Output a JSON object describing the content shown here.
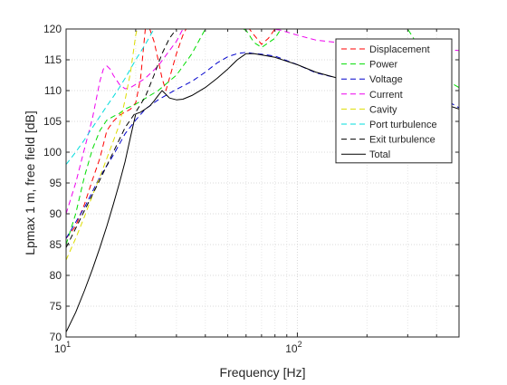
{
  "chart_data": {
    "type": "line",
    "xlabel": "Frequency [Hz]",
    "ylabel": "Lpmax 1 m, free field [dB]",
    "xscale": "log",
    "xlim": [
      10,
      500
    ],
    "ylim": [
      70,
      120
    ],
    "x_ticks": [
      10,
      100
    ],
    "x_tick_labels": [
      {
        "base": "10",
        "exp": "1"
      },
      {
        "base": "10",
        "exp": "2"
      }
    ],
    "y_ticks": [
      70,
      75,
      80,
      85,
      90,
      95,
      100,
      105,
      110,
      115,
      120
    ],
    "grid": "major and minor (dotted)",
    "legend_position": "top-right",
    "series": [
      {
        "name": "Displacement",
        "color": "#ff0000",
        "style": "dashed",
        "points": [
          [
            10,
            86
          ],
          [
            11,
            88
          ],
          [
            12,
            91.5
          ],
          [
            13,
            95.5
          ],
          [
            14,
            99
          ],
          [
            15,
            103.5
          ],
          [
            16,
            105
          ],
          [
            17,
            106
          ],
          [
            18,
            106.5
          ],
          [
            19,
            107
          ],
          [
            20,
            108
          ],
          [
            21,
            112
          ],
          [
            22,
            120
          ],
          [
            23,
            120
          ],
          [
            24,
            118
          ],
          [
            25,
            115
          ],
          [
            26,
            112
          ],
          [
            27,
            110
          ],
          [
            28,
            112
          ],
          [
            30,
            116
          ],
          [
            32,
            119
          ],
          [
            33,
            120
          ],
          [
            62,
            120
          ],
          [
            65,
            119
          ],
          [
            70,
            117.5
          ],
          [
            75,
            118.5
          ],
          [
            80,
            120
          ]
        ]
      },
      {
        "name": "Power",
        "color": "#00dd00",
        "style": "dashed",
        "points": [
          [
            10,
            85
          ],
          [
            11,
            90
          ],
          [
            12,
            96
          ],
          [
            13,
            100.5
          ],
          [
            14,
            103.5
          ],
          [
            15,
            105.2
          ],
          [
            16,
            105.8
          ],
          [
            17,
            106.3
          ],
          [
            18,
            107
          ],
          [
            20,
            107.8
          ],
          [
            25,
            110
          ],
          [
            30,
            112.5
          ],
          [
            35,
            116
          ],
          [
            40,
            120
          ],
          [
            58,
            120
          ],
          [
            60,
            119.8
          ],
          [
            65,
            117.8
          ],
          [
            70,
            117
          ],
          [
            80,
            118.5
          ],
          [
            85,
            120
          ],
          [
            300,
            120
          ],
          [
            350,
            116
          ],
          [
            400,
            113
          ],
          [
            450,
            111.5
          ],
          [
            500,
            110.5
          ]
        ]
      },
      {
        "name": "Voltage",
        "color": "#0000cc",
        "style": "dashed",
        "points": [
          [
            10,
            86
          ],
          [
            12,
            91
          ],
          [
            14,
            96
          ],
          [
            16,
            99.5
          ],
          [
            18,
            103
          ],
          [
            20,
            105.2
          ],
          [
            22,
            107
          ],
          [
            25,
            108.5
          ],
          [
            30,
            110.2
          ],
          [
            35,
            111.5
          ],
          [
            40,
            113
          ],
          [
            45,
            114.5
          ],
          [
            50,
            115.5
          ],
          [
            55,
            116
          ],
          [
            60,
            116.2
          ],
          [
            65,
            116
          ],
          [
            70,
            115.9
          ],
          [
            80,
            115.6
          ],
          [
            100,
            114.2
          ],
          [
            120,
            112.9
          ],
          [
            150,
            112
          ],
          [
            200,
            111.5
          ],
          [
            250,
            111.2
          ],
          [
            300,
            110.5
          ],
          [
            350,
            110
          ],
          [
            400,
            109
          ],
          [
            450,
            108.2
          ],
          [
            500,
            107.2
          ]
        ]
      },
      {
        "name": "Current",
        "color": "#ee00ee",
        "style": "dashed",
        "points": [
          [
            10,
            90
          ],
          [
            11,
            95
          ],
          [
            12,
            100.5
          ],
          [
            13,
            105.5
          ],
          [
            14,
            111.5
          ],
          [
            14.5,
            113.5
          ],
          [
            15,
            114
          ],
          [
            15.5,
            113.5
          ],
          [
            16,
            112.5
          ],
          [
            17,
            111
          ],
          [
            18,
            110.3
          ],
          [
            19,
            110.5
          ],
          [
            20,
            111
          ],
          [
            22,
            112
          ],
          [
            25,
            114
          ],
          [
            28,
            116.5
          ],
          [
            30,
            118
          ],
          [
            32,
            120
          ],
          [
            78,
            120
          ],
          [
            85,
            119.8
          ],
          [
            100,
            119
          ],
          [
            120,
            118.2
          ],
          [
            150,
            117.8
          ],
          [
            200,
            117.4
          ],
          [
            300,
            117
          ],
          [
            400,
            116.7
          ],
          [
            500,
            116.5
          ]
        ]
      },
      {
        "name": "Cavity",
        "color": "#dddd00",
        "style": "dashed",
        "points": [
          [
            10,
            82.5
          ],
          [
            11,
            86
          ],
          [
            12,
            89.5
          ],
          [
            13,
            93
          ],
          [
            14,
            96
          ],
          [
            15,
            99
          ],
          [
            16,
            101.8
          ],
          [
            17,
            104.5
          ],
          [
            18,
            108.5
          ],
          [
            19,
            113
          ],
          [
            20,
            119
          ],
          [
            20.3,
            120
          ]
        ]
      },
      {
        "name": "Port turbulence",
        "color": "#00dddd",
        "style": "dashed",
        "points": [
          [
            10,
            98
          ],
          [
            11,
            100
          ],
          [
            12,
            102
          ],
          [
            13,
            104
          ],
          [
            14,
            105.8
          ],
          [
            15,
            107.5
          ],
          [
            16,
            109
          ],
          [
            17,
            110.5
          ],
          [
            18,
            112
          ],
          [
            20,
            115
          ],
          [
            22,
            117.5
          ],
          [
            24,
            120
          ]
        ]
      },
      {
        "name": "Exit turbulence",
        "color": "#000000",
        "style": "dashed",
        "points": [
          [
            10,
            84.5
          ],
          [
            12,
            90.5
          ],
          [
            14,
            95.5
          ],
          [
            16,
            100
          ],
          [
            18,
            104
          ],
          [
            20,
            106.5
          ],
          [
            22,
            109
          ],
          [
            24,
            112.5
          ],
          [
            26,
            116
          ],
          [
            28,
            118.5
          ],
          [
            30,
            120
          ]
        ]
      },
      {
        "name": "Total",
        "color": "#000000",
        "style": "solid",
        "points": [
          [
            10,
            70.8
          ],
          [
            11,
            74
          ],
          [
            12,
            77.5
          ],
          [
            13,
            81
          ],
          [
            14,
            84.5
          ],
          [
            15,
            88
          ],
          [
            16,
            91.5
          ],
          [
            17,
            95
          ],
          [
            18,
            98.5
          ],
          [
            19,
            102.5
          ],
          [
            20,
            106.2
          ],
          [
            21,
            106.5
          ],
          [
            22,
            107
          ],
          [
            23,
            107.5
          ],
          [
            24,
            108.3
          ],
          [
            25,
            109.2
          ],
          [
            26,
            110
          ],
          [
            27,
            109.4
          ],
          [
            28,
            108.8
          ],
          [
            30,
            108.5
          ],
          [
            32,
            108.6
          ],
          [
            35,
            109.2
          ],
          [
            40,
            110.5
          ],
          [
            45,
            112
          ],
          [
            50,
            113.5
          ],
          [
            55,
            115
          ],
          [
            60,
            116
          ],
          [
            65,
            116
          ],
          [
            70,
            115.8
          ],
          [
            80,
            115.4
          ],
          [
            100,
            114.2
          ],
          [
            120,
            113
          ],
          [
            150,
            112
          ],
          [
            200,
            111.5
          ],
          [
            300,
            110.8
          ],
          [
            400,
            108.2
          ],
          [
            500,
            107
          ]
        ]
      }
    ]
  }
}
